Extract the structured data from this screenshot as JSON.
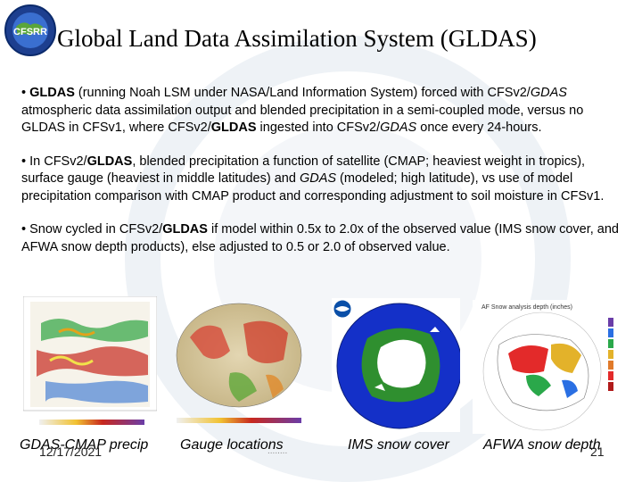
{
  "header": {
    "title": "Global Land Data Assimilation System (GLDAS)",
    "logo": {
      "icon": "cfsrr-logo-icon",
      "text": "CFSRR"
    }
  },
  "bullets": [
    {
      "parts": [
        {
          "t": "• "
        },
        {
          "t": "GLDAS",
          "b": true
        },
        {
          "t": " (running Noah LSM under NASA/Land Information System) forced with CFSv2/"
        },
        {
          "t": "GDAS",
          "i": true
        },
        {
          "t": " atmospheric data assimilation output and blended precipitation in a semi-coupled mode, versus no GLDAS in CFSv1, where CFSv2/"
        },
        {
          "t": "GLDAS",
          "b": true
        },
        {
          "t": " ingested into CFSv2/"
        },
        {
          "t": "GDAS",
          "i": true
        },
        {
          "t": " once every 24-hours."
        }
      ]
    },
    {
      "parts": [
        {
          "t": "• In CFSv2/"
        },
        {
          "t": "GLDAS",
          "b": true
        },
        {
          "t": ", blended precipitation a function of satellite (CMAP; heaviest weight in tropics), surface gauge (heaviest in middle latitudes) and "
        },
        {
          "t": "GDAS",
          "i": true
        },
        {
          "t": " (modeled; high latitude), vs use of model precipitation comparison with CMAP product and corresponding adjustment to soil moisture in CFSv1."
        }
      ]
    },
    {
      "parts": [
        {
          "t": "• Snow cycled in CFSv2/"
        },
        {
          "t": "GLDAS",
          "b": true
        },
        {
          "t": " if model within 0.5x to 2.0x of the observed value (IMS snow cover, and AFWA snow depth products), else adjusted to 0.5 or 2.0 of observed value."
        }
      ]
    }
  ],
  "captions": {
    "precip": "GDAS-CMAP precip",
    "gauge": "Gauge locations",
    "ims": "IMS snow cover",
    "afwa": "AFWA snow depth"
  },
  "footer": {
    "date": "12/17/2021",
    "page": "21",
    "dots": "........"
  },
  "panels": {
    "afwa_title": "AF Snow analysis depth (inches)",
    "afwa_title_icon": "afwa-map-title",
    "noaa_icon": "noaa-logo-icon"
  },
  "colors": {
    "ocean_blue": "#1430c8",
    "land_green": "#2f8f2f",
    "snow_white": "#ffffff",
    "land_tan": "#d8c9a0",
    "precip_red": "#c8281e"
  }
}
